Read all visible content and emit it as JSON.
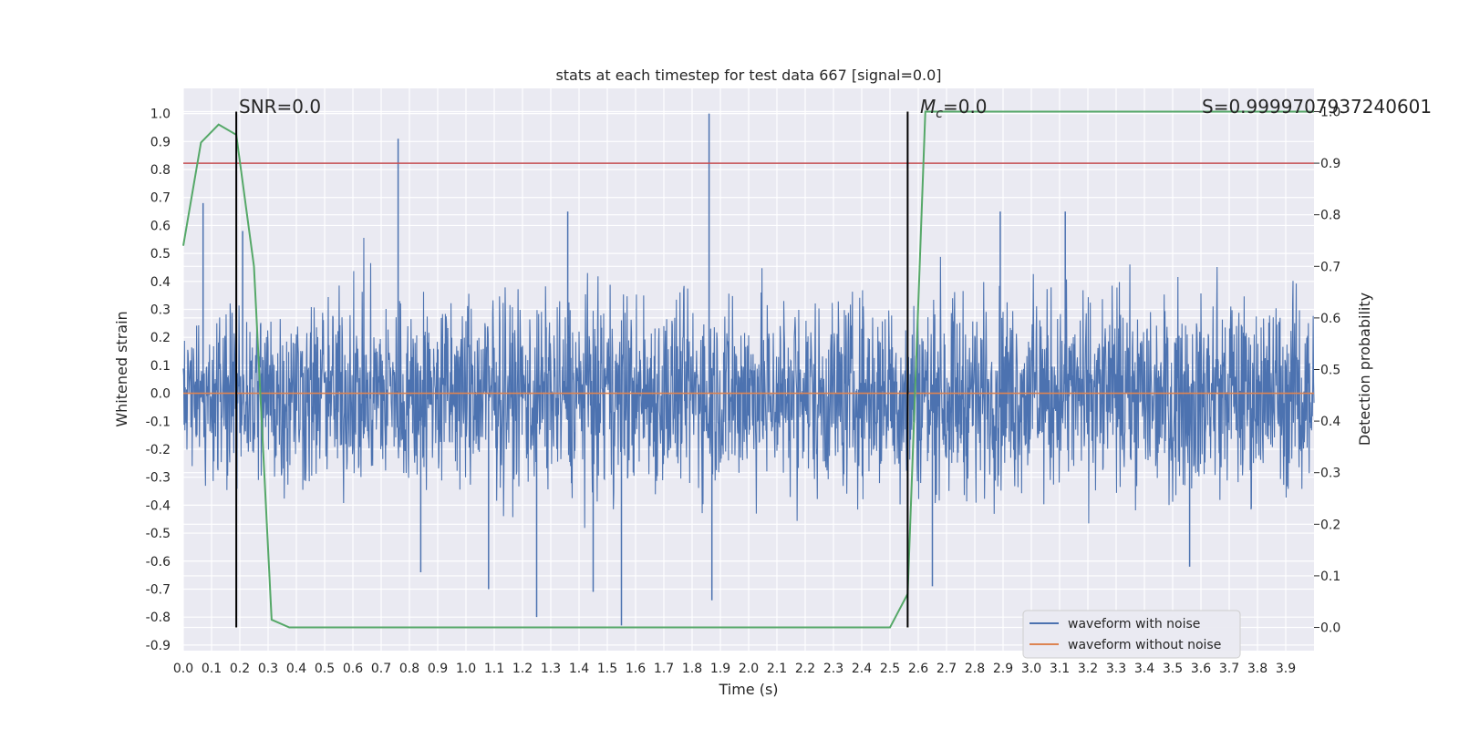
{
  "chart_data": {
    "type": "line",
    "title": "stats at each timestep for test data 667 [signal=0.0]",
    "xlabel": "Time (s)",
    "ylabel": "Whitened strain",
    "y2label": "Detection probability",
    "xlim": [
      0.0,
      4.0
    ],
    "ylim": [
      -0.92,
      1.09
    ],
    "y2lim": [
      -0.045,
      1.045
    ],
    "x_ticks": [
      0.0,
      0.1,
      0.2,
      0.3,
      0.4,
      0.5,
      0.6,
      0.7,
      0.8,
      0.9,
      1.0,
      1.1,
      1.2,
      1.3,
      1.4,
      1.5,
      1.6,
      1.7,
      1.8,
      1.9,
      2.0,
      2.1,
      2.2,
      2.3,
      2.4,
      2.5,
      2.6,
      2.7,
      2.8,
      2.9,
      3.0,
      3.1,
      3.2,
      3.3,
      3.4,
      3.5,
      3.6,
      3.7,
      3.8,
      3.9
    ],
    "y_ticks": [
      1.0,
      0.9,
      0.8,
      0.7,
      0.6,
      0.5,
      0.4,
      0.3,
      0.2,
      0.1,
      0.0,
      -0.1,
      -0.2,
      -0.3,
      -0.4,
      -0.5,
      -0.6,
      -0.7,
      -0.8,
      -0.9
    ],
    "y2_ticks": [
      1.0,
      0.9,
      0.8,
      0.7,
      0.6,
      0.5,
      0.4,
      0.3,
      0.2,
      0.1,
      0.0
    ],
    "y_tick_labels": [
      "1.0",
      "0.9",
      "0.8",
      "0.7",
      "0.6",
      "0.5",
      "0.4",
      "0.3",
      "0.2",
      "0.1",
      "0.0",
      "-0.1",
      "-0.2",
      "-0.3",
      "-0.4",
      "-0.5",
      "-0.6",
      "-0.7",
      "-0.8",
      "-0.9"
    ],
    "y2_tick_labels": [
      "1.0",
      "0.9",
      "0.8",
      "0.7",
      "0.6",
      "0.5",
      "0.4",
      "0.3",
      "0.2",
      "0.1",
      "0.0"
    ],
    "x_tick_labels": [
      "0.0",
      "0.1",
      "0.2",
      "0.3",
      "0.4",
      "0.5",
      "0.6",
      "0.7",
      "0.8",
      "0.9",
      "1.0",
      "1.1",
      "1.2",
      "1.3",
      "1.4",
      "1.5",
      "1.6",
      "1.7",
      "1.8",
      "1.9",
      "2.0",
      "2.1",
      "2.2",
      "2.3",
      "2.4",
      "2.5",
      "2.6",
      "2.7",
      "2.8",
      "2.9",
      "3.0",
      "3.1",
      "3.2",
      "3.3",
      "3.4",
      "3.5",
      "3.6",
      "3.7",
      "3.8",
      "3.9"
    ],
    "series": [
      {
        "name": "waveform with noise",
        "axis": "left",
        "color": "#4c72b0",
        "description": "dense whitened noise, roughly ±0.5, occasional spikes",
        "amplitude": 0.45,
        "spikes": [
          {
            "x": 0.07,
            "y": 0.68
          },
          {
            "x": 0.21,
            "y": 0.58
          },
          {
            "x": 0.76,
            "y": 0.91
          },
          {
            "x": 1.86,
            "y": 1.0
          },
          {
            "x": 1.25,
            "y": -0.8
          },
          {
            "x": 1.55,
            "y": -0.83
          },
          {
            "x": 1.87,
            "y": -0.74
          },
          {
            "x": 1.36,
            "y": 0.65
          },
          {
            "x": 2.89,
            "y": 0.65
          },
          {
            "x": 3.12,
            "y": 0.65
          },
          {
            "x": 1.08,
            "y": -0.7
          },
          {
            "x": 0.84,
            "y": -0.64
          },
          {
            "x": 3.56,
            "y": -0.62
          },
          {
            "x": 1.45,
            "y": -0.71
          },
          {
            "x": 2.65,
            "y": -0.69
          }
        ]
      },
      {
        "name": "waveform without noise",
        "axis": "left",
        "color": "#dd8452",
        "x": [
          0.0,
          4.0
        ],
        "y": [
          0.0,
          0.0
        ]
      },
      {
        "name": "detection probability",
        "axis": "right",
        "color": "#55a868",
        "x": [
          0.0,
          0.0625,
          0.125,
          0.1875,
          0.25,
          0.3125,
          0.375,
          2.5,
          2.5625,
          2.625,
          4.0
        ],
        "y": [
          0.74,
          0.94,
          0.975,
          0.955,
          0.7,
          0.015,
          0.0,
          0.0,
          0.065,
          1.0,
          1.0
        ]
      }
    ],
    "threshold": {
      "axis": "right",
      "y": 0.9,
      "color": "#c44e52"
    },
    "vlines": [
      {
        "x": 0.1875,
        "label": "SNR=0.0"
      },
      {
        "x": 2.5625,
        "label": "M_c=0.0"
      }
    ],
    "annotations": {
      "snr": "SNR=0.0",
      "mc_main": "M",
      "mc_sub": "c",
      "mc_rest": "=0.0",
      "s": "S=0.9999707937240601"
    },
    "legend": {
      "position": "lower-right",
      "entries": [
        {
          "label": "waveform with noise",
          "color": "#4c72b0"
        },
        {
          "label": "waveform without noise",
          "color": "#dd8452"
        }
      ]
    },
    "grid": true,
    "background": "#eaeaf2"
  }
}
